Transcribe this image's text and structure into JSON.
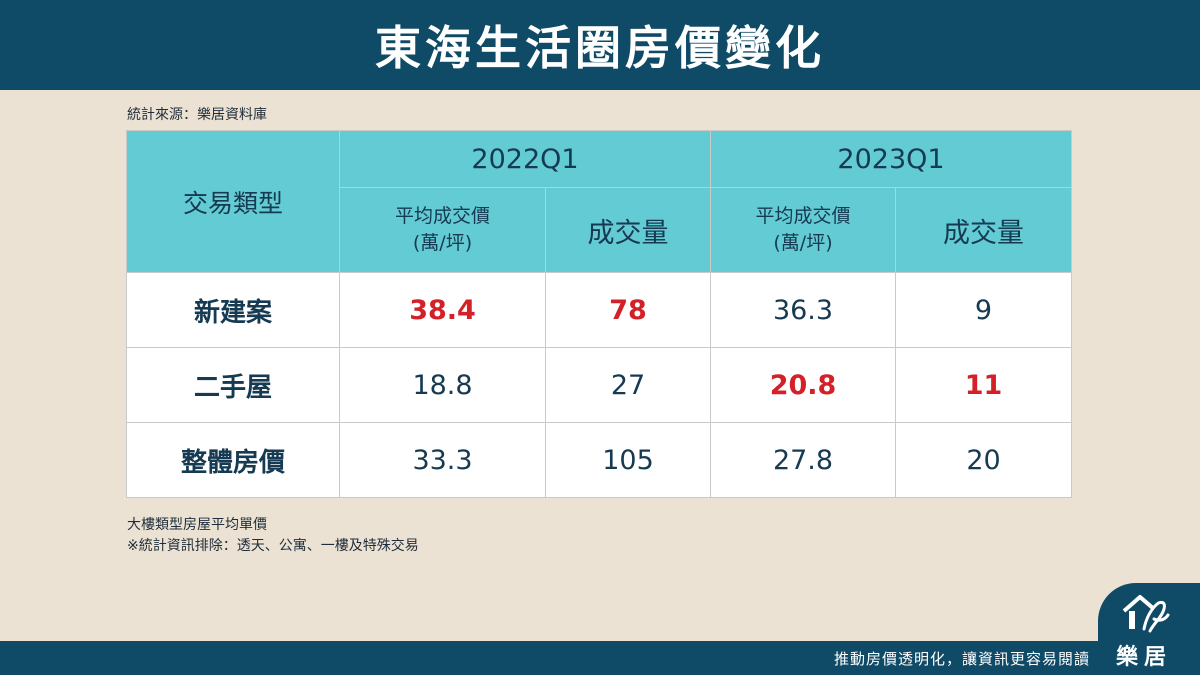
{
  "header": {
    "title": "東海生活圈房價變化"
  },
  "source": "統計來源：樂居資料庫",
  "table": {
    "type_header": "交易類型",
    "periods": [
      "2022Q1",
      "2023Q1"
    ],
    "avg_price_label_line1": "平均成交價",
    "avg_price_label_line2": "(萬/坪)",
    "volume_label": "成交量",
    "rows": [
      {
        "label": "新建案",
        "p2022_price": "38.4",
        "p2022_volume": "78",
        "p2023_price": "36.3",
        "p2023_volume": "9"
      },
      {
        "label": "二手屋",
        "p2022_price": "18.8",
        "p2022_volume": "27",
        "p2023_price": "20.8",
        "p2023_volume": "11"
      },
      {
        "label": "整體房價",
        "p2022_price": "33.3",
        "p2022_volume": "105",
        "p2023_price": "27.8",
        "p2023_volume": "20"
      }
    ],
    "highlight_color": "#d42027"
  },
  "notes": {
    "line1": "大樓類型房屋平均單價",
    "line2": "※統計資訊排除：透天、公寓、一樓及特殊交易"
  },
  "footer": {
    "slogan": "推動房價透明化，讓資訊更容易閱讀",
    "logo_text": "樂居",
    "logo_icon": "house-signature-icon"
  },
  "colors": {
    "brand": "#0f4a66",
    "header_cell": "#63cbd3",
    "background": "#ece2d4"
  }
}
